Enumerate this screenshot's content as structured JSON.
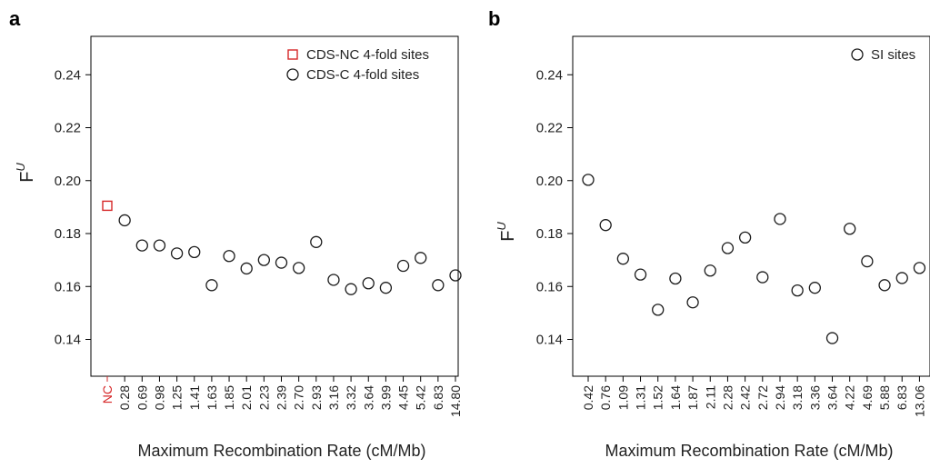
{
  "colors": {
    "nc": "#d62728",
    "default": "#1a1a1a"
  },
  "chart_data": [
    {
      "type": "scatter",
      "panel_label": "a",
      "ylabel": "F",
      "ylabel_superscript": "U",
      "xlabel": "Maximum Recombination Rate (cM/Mb)",
      "ylim": [
        0.125,
        0.255
      ],
      "yticks": [
        "0.14",
        "0.16",
        "0.18",
        "0.20",
        "0.22",
        "0.24"
      ],
      "legend_position": "top-right",
      "grid": false,
      "categories": [
        "NC",
        "0.28",
        "0.69",
        "0.98",
        "1.25",
        "1.41",
        "1.63",
        "1.85",
        "2.01",
        "2.23",
        "2.39",
        "2.70",
        "2.93",
        "3.16",
        "3.32",
        "3.64",
        "3.99",
        "4.45",
        "5.42",
        "6.83",
        "14.80"
      ],
      "series": [
        {
          "name": "CDS-NC 4-fold sites",
          "marker": "square",
          "color": "#d62728",
          "values": [
            0.1905,
            null,
            null,
            null,
            null,
            null,
            null,
            null,
            null,
            null,
            null,
            null,
            null,
            null,
            null,
            null,
            null,
            null,
            null,
            null,
            null
          ]
        },
        {
          "name": "CDS-C 4-fold sites",
          "marker": "circle",
          "color": "#1a1a1a",
          "values": [
            null,
            0.185,
            0.1755,
            0.1755,
            0.1725,
            0.173,
            0.1605,
            0.1715,
            0.1668,
            0.17,
            0.169,
            0.167,
            0.1768,
            0.1625,
            0.159,
            0.1612,
            0.1595,
            0.1678,
            0.1708,
            0.1605,
            0.1642
          ]
        }
      ]
    },
    {
      "type": "scatter",
      "panel_label": "b",
      "ylabel": "F",
      "ylabel_superscript": "U",
      "xlabel": "Maximum Recombination Rate (cM/Mb)",
      "ylim": [
        0.125,
        0.255
      ],
      "yticks": [
        "0.14",
        "0.16",
        "0.18",
        "0.20",
        "0.22",
        "0.24"
      ],
      "legend_position": "top-right",
      "grid": false,
      "categories": [
        "0.42",
        "0.76",
        "1.09",
        "1.31",
        "1.52",
        "1.64",
        "1.87",
        "2.11",
        "2.28",
        "2.42",
        "2.72",
        "2.94",
        "3.18",
        "3.36",
        "3.64",
        "4.22",
        "4.69",
        "5.88",
        "6.83",
        "13.06"
      ],
      "series": [
        {
          "name": "SI sites",
          "marker": "circle",
          "color": "#1a1a1a",
          "values": [
            0.2003,
            0.1832,
            0.1705,
            0.1645,
            0.1512,
            0.163,
            0.154,
            0.166,
            0.1745,
            0.1785,
            0.1635,
            0.1855,
            0.1585,
            0.1595,
            0.1405,
            0.1818,
            0.1695,
            0.1605,
            0.1632,
            0.167
          ]
        }
      ]
    }
  ]
}
